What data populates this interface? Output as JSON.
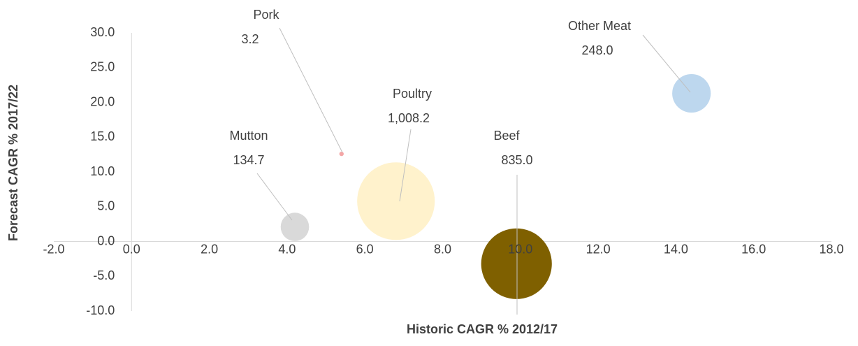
{
  "chart_data": {
    "type": "bubble",
    "xlabel": "Historic CAGR % 2012/17",
    "ylabel": "Forecast CAGR % 2017/22",
    "xlim": [
      -2,
      18
    ],
    "ylim": [
      -10,
      30
    ],
    "xticks": [
      {
        "value": -2,
        "label": "-2.0"
      },
      {
        "value": 0,
        "label": "0.0"
      },
      {
        "value": 2,
        "label": "2.0"
      },
      {
        "value": 4,
        "label": "4.0"
      },
      {
        "value": 6,
        "label": "6.0"
      },
      {
        "value": 8,
        "label": "8.0"
      },
      {
        "value": 10,
        "label": "10.0"
      },
      {
        "value": 12,
        "label": "12.0"
      },
      {
        "value": 14,
        "label": "14.0"
      },
      {
        "value": 16,
        "label": "16.0"
      },
      {
        "value": 18,
        "label": "18.0"
      }
    ],
    "yticks": [
      {
        "value": -10,
        "label": "-10.0"
      },
      {
        "value": -5,
        "label": "-5.0"
      },
      {
        "value": 0,
        "label": "0.0"
      },
      {
        "value": 5,
        "label": "5.0"
      },
      {
        "value": 10,
        "label": "10.0"
      },
      {
        "value": 15,
        "label": "15.0"
      },
      {
        "value": 20,
        "label": "20.0"
      },
      {
        "value": 25,
        "label": "25.0"
      },
      {
        "value": 30,
        "label": "30.0"
      }
    ],
    "series": [
      {
        "name": "Pork",
        "color": "#f4a6a6",
        "x": [
          5.4
        ],
        "values": [
          12.6
        ],
        "sizes": [
          3.2
        ],
        "size_labels": [
          "3.2"
        ]
      },
      {
        "name": "Other Meat",
        "color": "#bdd7ee",
        "x": [
          14.4
        ],
        "values": [
          21.3
        ],
        "sizes": [
          248.0
        ],
        "size_labels": [
          "248.0"
        ]
      },
      {
        "name": "Poultry",
        "color": "#fff2cc",
        "x": [
          6.8
        ],
        "values": [
          5.8
        ],
        "sizes": [
          1008.2
        ],
        "size_labels": [
          "1,008.2"
        ]
      },
      {
        "name": "Mutton",
        "color": "#d9d9d9",
        "x": [
          4.2
        ],
        "values": [
          2.1
        ],
        "sizes": [
          134.7
        ],
        "size_labels": [
          "134.7"
        ]
      },
      {
        "name": "Beef",
        "color": "#7f6000",
        "x": [
          9.9
        ],
        "values": [
          -3.2
        ],
        "sizes": [
          835.0
        ],
        "size_labels": [
          "835.0"
        ]
      }
    ]
  }
}
